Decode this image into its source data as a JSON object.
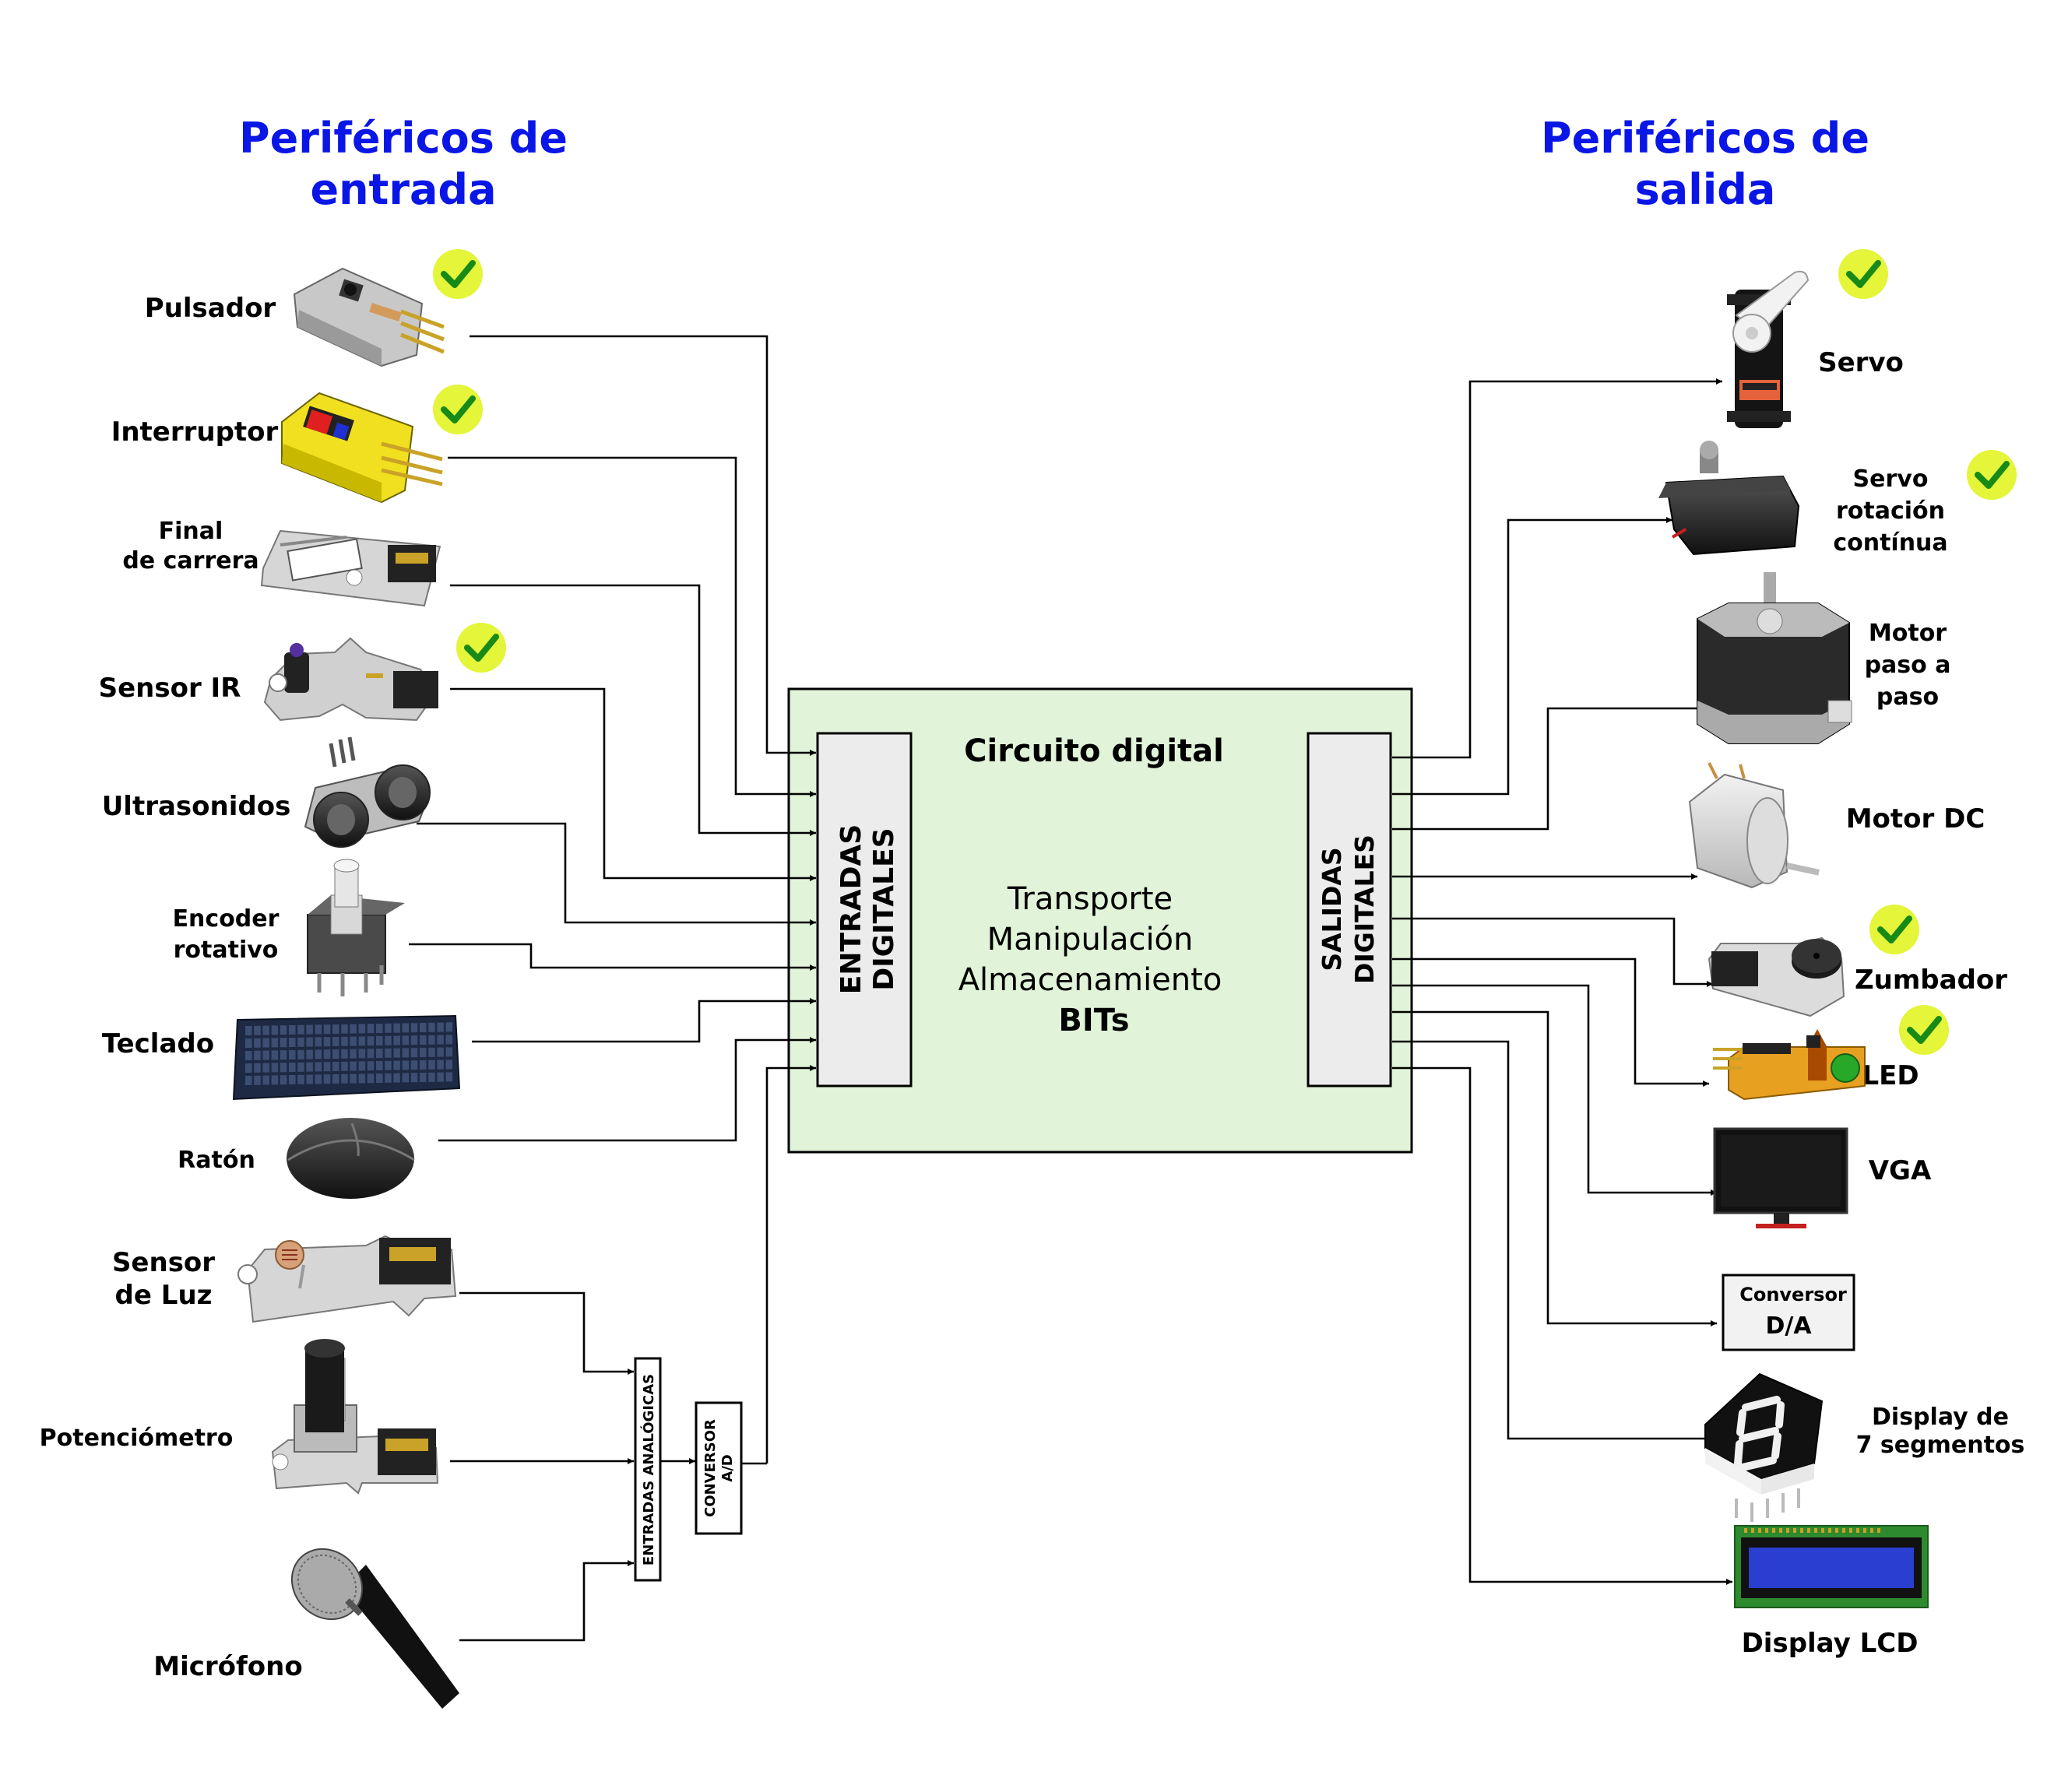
{
  "headings": {
    "inputs": [
      "Periféricos de",
      "entrada"
    ],
    "outputs": [
      "Periféricos de",
      "salida"
    ]
  },
  "circuit": {
    "title": "Circuito digital",
    "lines": [
      "Transporte",
      "Manipulación",
      "Almacenamiento"
    ],
    "bold_line": "BITs",
    "inputs_box": [
      "ENTRADAS",
      "DIGITALES"
    ],
    "outputs_box": [
      "SALIDAS",
      "DIGITALES"
    ],
    "background_color": "#e1f4d9"
  },
  "input_devices": [
    {
      "label": [
        "Pulsador"
      ],
      "icon": "push-button-module",
      "checked": true
    },
    {
      "label": [
        "Interruptor"
      ],
      "icon": "switch-module",
      "checked": true
    },
    {
      "label": [
        "Final",
        "de carrera"
      ],
      "icon": "limit-switch-module",
      "checked": false
    },
    {
      "label": [
        "Sensor IR"
      ],
      "icon": "ir-sensor-module",
      "checked": true
    },
    {
      "label": [
        "Ultrasonidos"
      ],
      "icon": "ultrasonic-sensor",
      "checked": false
    },
    {
      "label": [
        "Encoder",
        "rotativo"
      ],
      "icon": "rotary-encoder",
      "checked": false
    },
    {
      "label": [
        "Teclado"
      ],
      "icon": "keyboard",
      "checked": false
    },
    {
      "label": [
        "Ratón"
      ],
      "icon": "mouse",
      "checked": false
    }
  ],
  "analog_devices": [
    {
      "label": [
        "Sensor",
        "de Luz"
      ],
      "icon": "light-sensor-module"
    },
    {
      "label": [
        "Potenciómetro"
      ],
      "icon": "potentiometer-module"
    },
    {
      "label": [
        "Micrófono"
      ],
      "icon": "microphone"
    }
  ],
  "analog_inputs_label": "ENTRADAS ANALÓGICAS",
  "ad_converter": [
    "CONVERSOR",
    "A/D"
  ],
  "output_devices": [
    {
      "label": [
        "Servo"
      ],
      "icon": "servo",
      "checked": true
    },
    {
      "label": [
        "Servo",
        "rotación",
        "contínua"
      ],
      "icon": "continuous-servo",
      "checked": true
    },
    {
      "label": [
        "Motor",
        "paso a",
        "paso"
      ],
      "icon": "stepper-motor",
      "checked": false
    },
    {
      "label": [
        "Motor DC"
      ],
      "icon": "dc-motor",
      "checked": false
    },
    {
      "label": [
        "Zumbador"
      ],
      "icon": "buzzer-module",
      "checked": true
    },
    {
      "label": [
        "LED"
      ],
      "icon": "led-module",
      "checked": true
    },
    {
      "label": [
        "VGA"
      ],
      "icon": "monitor",
      "checked": false
    },
    {
      "label": [
        "Conversor",
        "D/A"
      ],
      "icon": "da-converter",
      "checked": false
    },
    {
      "label": [
        "Display de",
        "7 segmentos"
      ],
      "icon": "seven-segment-display",
      "checked": false
    },
    {
      "label": [
        "Display LCD"
      ],
      "icon": "lcd-display",
      "checked": false
    }
  ],
  "colors": {
    "heading": "#0a16e6",
    "check_badge": "#e4f53a",
    "check_mark": "#178a17",
    "lcd_screen": "#2a3fd0",
    "led_board": "#e8a020",
    "switch_board": "#f0e020"
  }
}
